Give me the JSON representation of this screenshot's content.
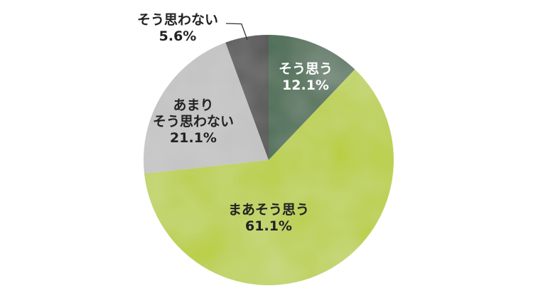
{
  "chart_data": {
    "type": "pie",
    "categories": [
      "そう思う",
      "まあそう思う",
      "あまりそう思わない",
      "そう思わない"
    ],
    "values": [
      12.1,
      61.1,
      21.1,
      5.6
    ],
    "value_labels": [
      "12.1%",
      "61.1%",
      "21.1%",
      "5.6%"
    ],
    "label_lines": [
      [
        "そう思う"
      ],
      [
        "まあそう思う"
      ],
      [
        "あまり",
        "そう思わない"
      ],
      [
        "そう思わない"
      ]
    ],
    "colors": [
      "#2f5e3d",
      "#b6cc28",
      "#bdbdbd",
      "#3d3d3d"
    ],
    "label_colors": [
      "#ffffff",
      "#222222",
      "#222222",
      "#222222"
    ],
    "start_angle": "12 o'clock",
    "direction": "clockwise",
    "legend": "none"
  }
}
